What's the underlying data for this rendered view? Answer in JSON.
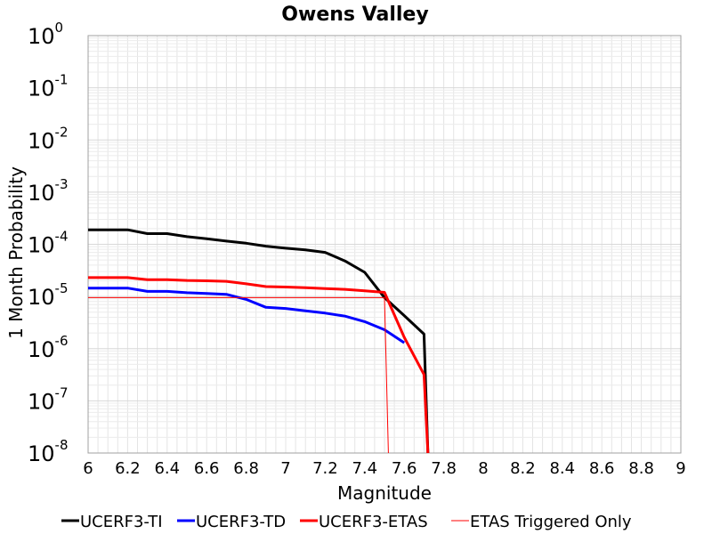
{
  "chart_data": {
    "type": "line",
    "title": "Owens Valley",
    "xlabel": "Magnitude",
    "ylabel": "1 Month Probability",
    "xlim": [
      6,
      9
    ],
    "ylim": [
      1e-08,
      1
    ],
    "yscale": "log",
    "grid": true,
    "legend_position": "bottom",
    "x_ticks": [
      "6",
      "6.2",
      "6.4",
      "6.6",
      "6.8",
      "7",
      "7.2",
      "7.4",
      "7.6",
      "7.8",
      "8",
      "8.2",
      "8.4",
      "8.6",
      "8.8",
      "9"
    ],
    "y_ticks": [
      {
        "base": "10",
        "exp": "0"
      },
      {
        "base": "10",
        "exp": "-1"
      },
      {
        "base": "10",
        "exp": "-2"
      },
      {
        "base": "10",
        "exp": "-3"
      },
      {
        "base": "10",
        "exp": "-4"
      },
      {
        "base": "10",
        "exp": "-5"
      },
      {
        "base": "10",
        "exp": "-6"
      },
      {
        "base": "10",
        "exp": "-7"
      },
      {
        "base": "10",
        "exp": "-8"
      }
    ],
    "series": [
      {
        "name": "UCERF3-TI",
        "color": "#000000",
        "width": 3,
        "points": [
          [
            6.0,
            0.00019
          ],
          [
            6.2,
            0.00019
          ],
          [
            6.3,
            0.00016
          ],
          [
            6.4,
            0.00016
          ],
          [
            6.5,
            0.00014
          ],
          [
            6.6,
            0.000128
          ],
          [
            6.7,
            0.000115
          ],
          [
            6.8,
            0.000105
          ],
          [
            6.9,
            9.2e-05
          ],
          [
            7.0,
            8.4e-05
          ],
          [
            7.1,
            7.8e-05
          ],
          [
            7.2,
            7e-05
          ],
          [
            7.3,
            4.8e-05
          ],
          [
            7.4,
            2.9e-05
          ],
          [
            7.5,
            9.5e-06
          ],
          [
            7.6,
            4.3e-06
          ],
          [
            7.7,
            1.9e-06
          ],
          [
            7.72,
            1e-08
          ]
        ]
      },
      {
        "name": "UCERF3-TD",
        "color": "#0000ff",
        "width": 3,
        "points": [
          [
            6.0,
            1.45e-05
          ],
          [
            6.2,
            1.45e-05
          ],
          [
            6.3,
            1.25e-05
          ],
          [
            6.4,
            1.25e-05
          ],
          [
            6.5,
            1.18e-05
          ],
          [
            6.6,
            1.14e-05
          ],
          [
            6.7,
            1.1e-05
          ],
          [
            6.8,
            8.8e-06
          ],
          [
            6.9,
            6.2e-06
          ],
          [
            7.0,
            5.9e-06
          ],
          [
            7.1,
            5.3e-06
          ],
          [
            7.2,
            4.8e-06
          ],
          [
            7.3,
            4.2e-06
          ],
          [
            7.4,
            3.3e-06
          ],
          [
            7.5,
            2.3e-06
          ],
          [
            7.6,
            1.3e-06
          ]
        ]
      },
      {
        "name": "UCERF3-ETAS",
        "color": "#ff0000",
        "width": 3,
        "points": [
          [
            6.0,
            2.3e-05
          ],
          [
            6.2,
            2.3e-05
          ],
          [
            6.3,
            2.1e-05
          ],
          [
            6.4,
            2.1e-05
          ],
          [
            6.5,
            2.03e-05
          ],
          [
            6.6,
            2e-05
          ],
          [
            6.7,
            1.95e-05
          ],
          [
            6.8,
            1.75e-05
          ],
          [
            6.9,
            1.55e-05
          ],
          [
            7.0,
            1.52e-05
          ],
          [
            7.1,
            1.47e-05
          ],
          [
            7.2,
            1.42e-05
          ],
          [
            7.3,
            1.37e-05
          ],
          [
            7.4,
            1.28e-05
          ],
          [
            7.5,
            1.2e-05
          ],
          [
            7.6,
            1.65e-06
          ],
          [
            7.7,
            3.2e-07
          ],
          [
            7.72,
            1e-08
          ]
        ]
      },
      {
        "name": "ETAS Triggered Only",
        "color": "#ff0000",
        "width": 1,
        "points": [
          [
            6.0,
            9.5e-06
          ],
          [
            7.5,
            9.5e-06
          ],
          [
            7.52,
            1e-08
          ]
        ]
      }
    ]
  }
}
